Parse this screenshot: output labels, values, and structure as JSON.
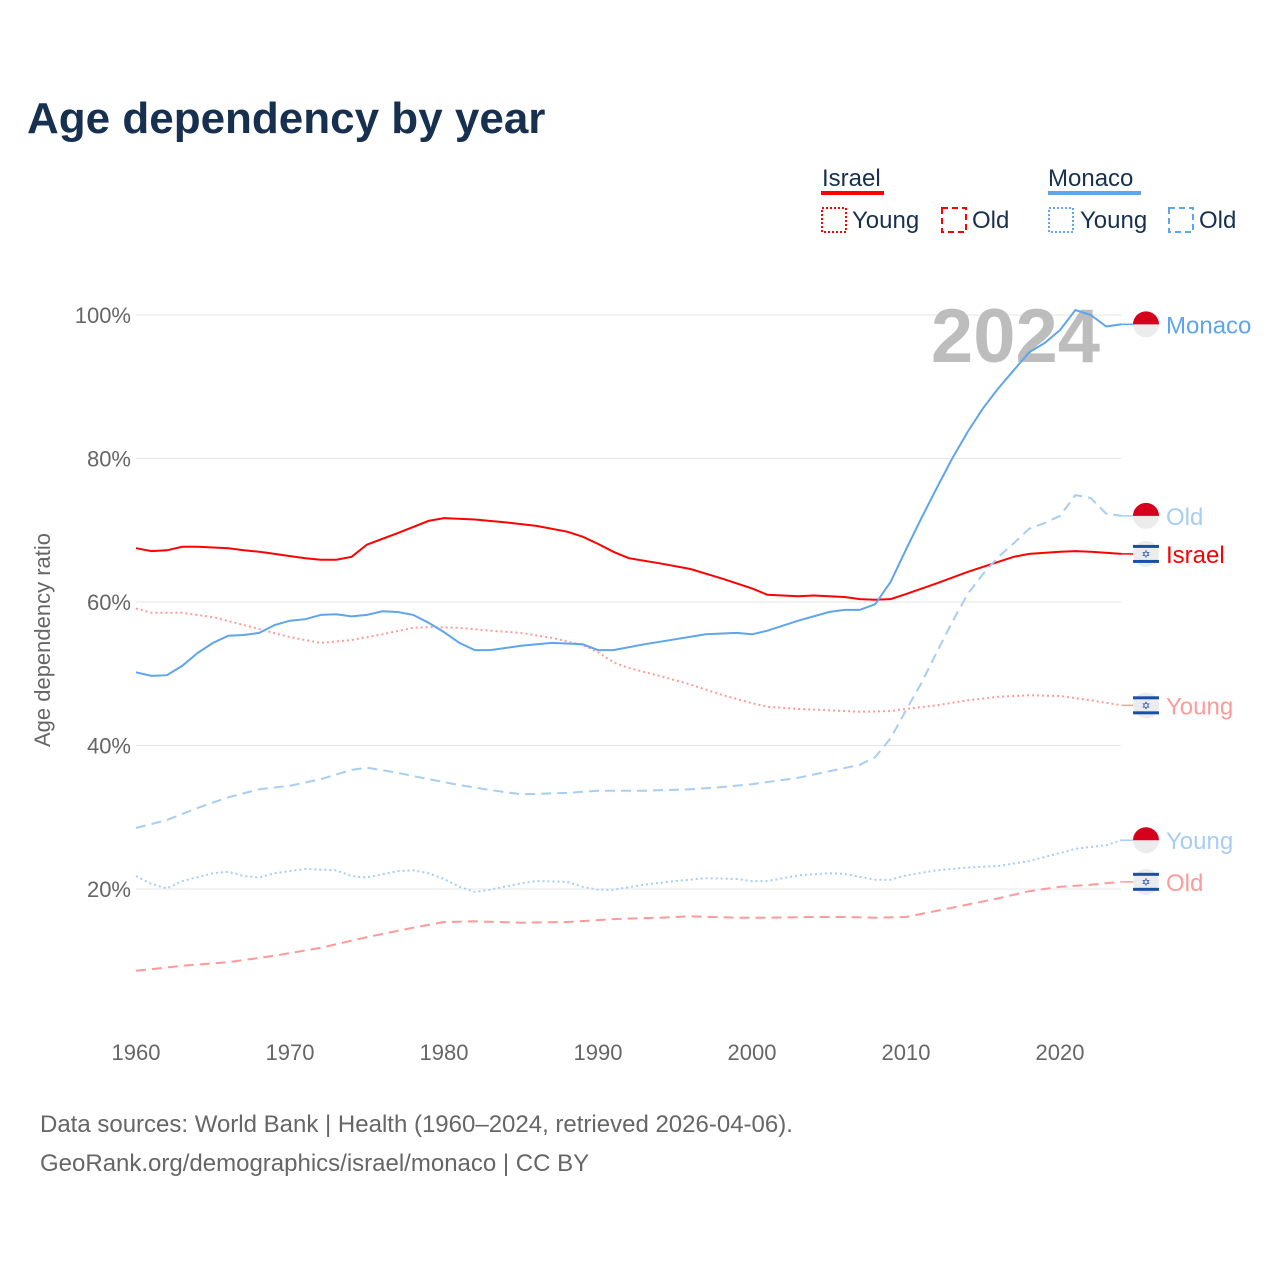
{
  "chart_data": {
    "type": "line",
    "title": "Age dependency by year",
    "ylabel": "Age dependency ratio",
    "xlabel": "",
    "xlim": [
      1960,
      2024
    ],
    "ylim": [
      0,
      100
    ],
    "x_ticks": [
      "1960",
      "1970",
      "1980",
      "1990",
      "2000",
      "2010",
      "2020"
    ],
    "y_ticks": [
      "20%",
      "40%",
      "60%",
      "80%",
      "100%"
    ],
    "y_tick_values": [
      20,
      40,
      60,
      80,
      100
    ],
    "x_tick_values": [
      1960,
      1970,
      1980,
      1990,
      2000,
      2010,
      2020
    ],
    "grid": true,
    "year_badge": "2024",
    "legend": {
      "placement": "top-right",
      "groups": [
        {
          "country": "Israel",
          "color": "#ff0000",
          "young": "Young",
          "old": "Old"
        },
        {
          "country": "Monaco",
          "color": "#5ea5ec",
          "young": "Young",
          "old": "Old"
        }
      ]
    },
    "series": [
      {
        "name": "Israel",
        "label": "Israel",
        "flag": "israel",
        "style": "solid",
        "color": "#ff0000",
        "x": [
          1960,
          1961,
          1962,
          1963,
          1964,
          1965,
          1966,
          1967,
          1968,
          1969,
          1970,
          1971,
          1972,
          1973,
          1974,
          1975,
          1977,
          1979,
          1980,
          1982,
          1984,
          1986,
          1988,
          1989,
          1990,
          1991,
          1992,
          1994,
          1996,
          1998,
          2000,
          2001,
          2003,
          2004,
          2006,
          2007,
          2008,
          2009,
          2010,
          2012,
          2014,
          2016,
          2017,
          2018,
          2020,
          2021,
          2022,
          2024
        ],
        "values": [
          67.5,
          67.1,
          67.2,
          67.7,
          67.7,
          67.6,
          67.5,
          67.2,
          67.0,
          66.7,
          66.4,
          66.1,
          65.9,
          65.9,
          66.3,
          68.0,
          69.6,
          71.3,
          71.7,
          71.5,
          71.1,
          70.6,
          69.8,
          69.1,
          68.1,
          67.0,
          66.1,
          65.4,
          64.6,
          63.3,
          61.9,
          61.0,
          60.8,
          60.9,
          60.7,
          60.4,
          60.3,
          60.4,
          61.1,
          62.6,
          64.2,
          65.6,
          66.3,
          66.7,
          67.0,
          67.1,
          67.0,
          66.7
        ]
      },
      {
        "name": "Israel Young",
        "label": "Young",
        "flag": "israel",
        "style": "dotted",
        "color": "#ff9a9a",
        "x": [
          1960,
          1961,
          1963,
          1965,
          1967,
          1970,
          1972,
          1974,
          1976,
          1978,
          1979,
          1981,
          1983,
          1985,
          1987,
          1989,
          1990,
          1991,
          1992,
          1994,
          1996,
          1998,
          2000,
          2001,
          2003,
          2005,
          2007,
          2009,
          2010,
          2012,
          2014,
          2016,
          2018,
          2020,
          2022,
          2024
        ],
        "values": [
          59.1,
          58.5,
          58.5,
          57.9,
          56.8,
          55.1,
          54.3,
          54.7,
          55.5,
          56.4,
          56.5,
          56.4,
          56.0,
          55.7,
          55.0,
          54.0,
          53.0,
          51.6,
          50.8,
          49.7,
          48.5,
          47.1,
          45.9,
          45.4,
          45.1,
          44.9,
          44.7,
          44.8,
          45.1,
          45.6,
          46.3,
          46.8,
          47.0,
          46.9,
          46.3,
          45.6
        ]
      },
      {
        "name": "Israel Old",
        "label": "Old",
        "flag": "israel",
        "style": "dashed",
        "color": "#ff9a9a",
        "x": [
          1960,
          1963,
          1966,
          1969,
          1972,
          1975,
          1978,
          1980,
          1982,
          1985,
          1988,
          1991,
          1994,
          1996,
          1999,
          2001,
          2004,
          2006,
          2008,
          2010,
          2013,
          2016,
          2018,
          2020,
          2022,
          2024
        ],
        "values": [
          8.6,
          9.3,
          9.8,
          10.7,
          11.8,
          13.3,
          14.6,
          15.4,
          15.5,
          15.3,
          15.4,
          15.8,
          16.0,
          16.2,
          16.0,
          16.0,
          16.1,
          16.1,
          16.0,
          16.1,
          17.4,
          18.7,
          19.7,
          20.3,
          20.6,
          21.0
        ]
      },
      {
        "name": "Monaco",
        "label": "Monaco",
        "flag": "monaco",
        "style": "solid",
        "color": "#5ea5ec",
        "x": [
          1960,
          1961,
          1962,
          1963,
          1964,
          1965,
          1966,
          1967,
          1968,
          1969,
          1970,
          1971,
          1972,
          1973,
          1974,
          1975,
          1976,
          1977,
          1978,
          1979,
          1980,
          1981,
          1982,
          1983,
          1985,
          1987,
          1989,
          1990,
          1991,
          1993,
          1995,
          1997,
          1999,
          2000,
          2001,
          2003,
          2004,
          2005,
          2006,
          2007,
          2008,
          2009,
          2010,
          2011,
          2012,
          2013,
          2014,
          2015,
          2016,
          2017,
          2018,
          2019,
          2020,
          2021,
          2022,
          2023,
          2024
        ],
        "values": [
          50.2,
          49.7,
          49.8,
          51.1,
          52.9,
          54.3,
          55.3,
          55.4,
          55.7,
          56.8,
          57.4,
          57.6,
          58.2,
          58.3,
          58.0,
          58.2,
          58.7,
          58.6,
          58.2,
          57.1,
          55.8,
          54.3,
          53.3,
          53.3,
          53.9,
          54.3,
          54.1,
          53.3,
          53.3,
          54.1,
          54.8,
          55.5,
          55.7,
          55.5,
          56.0,
          57.4,
          58.0,
          58.6,
          58.9,
          58.9,
          59.7,
          62.8,
          67.3,
          71.7,
          75.9,
          80.0,
          83.7,
          87.0,
          89.8,
          92.3,
          94.8,
          96.1,
          97.9,
          100.7,
          100.0,
          98.4,
          98.7
        ]
      },
      {
        "name": "Monaco Old",
        "label": "Old",
        "flag": "monaco",
        "style": "dashed",
        "color": "#a7cdf3",
        "x": [
          1960,
          1962,
          1964,
          1966,
          1968,
          1970,
          1972,
          1974,
          1975,
          1977,
          1979,
          1981,
          1983,
          1985,
          1988,
          1990,
          1993,
          1996,
          1998,
          2000,
          2003,
          2005,
          2007,
          2008,
          2009,
          2010,
          2011,
          2012,
          2013,
          2014,
          2015,
          2016,
          2017,
          2018,
          2019,
          2020,
          2021,
          2022,
          2023,
          2024
        ],
        "values": [
          28.5,
          29.6,
          31.3,
          32.8,
          33.9,
          34.4,
          35.3,
          36.6,
          36.9,
          36.2,
          35.3,
          34.5,
          33.8,
          33.2,
          33.4,
          33.7,
          33.7,
          33.9,
          34.2,
          34.6,
          35.5,
          36.4,
          37.3,
          38.4,
          41.0,
          44.9,
          48.7,
          53.0,
          57.2,
          61.1,
          63.9,
          66.3,
          68.2,
          70.2,
          71.0,
          72.0,
          74.9,
          74.5,
          72.3,
          72.0
        ]
      },
      {
        "name": "Monaco Young",
        "label": "Young",
        "flag": "monaco",
        "style": "dotted",
        "color": "#a7cdf3",
        "x": [
          1960,
          1961,
          1962,
          1963,
          1965,
          1966,
          1967,
          1968,
          1969,
          1971,
          1973,
          1974,
          1975,
          1977,
          1978,
          1979,
          1980,
          1981,
          1982,
          1983,
          1985,
          1986,
          1988,
          1989,
          1990,
          1991,
          1993,
          1995,
          1997,
          1999,
          2000,
          2001,
          2003,
          2005,
          2006,
          2007,
          2008,
          2009,
          2010,
          2012,
          2014,
          2016,
          2018,
          2020,
          2021,
          2023,
          2024
        ],
        "values": [
          21.8,
          20.7,
          20.1,
          21.1,
          22.2,
          22.4,
          21.8,
          21.6,
          22.2,
          22.8,
          22.6,
          21.8,
          21.6,
          22.5,
          22.6,
          22.2,
          21.4,
          20.3,
          19.6,
          19.9,
          20.8,
          21.1,
          21.0,
          20.3,
          19.9,
          19.9,
          20.6,
          21.1,
          21.5,
          21.4,
          21.1,
          21.1,
          21.9,
          22.2,
          22.1,
          21.7,
          21.3,
          21.3,
          21.9,
          22.6,
          23.0,
          23.2,
          23.9,
          25.0,
          25.6,
          26.1,
          26.8
        ]
      }
    ]
  },
  "footer": {
    "line1": "Data sources: World Bank | Health (1960–2024, retrieved 2026-04-06).",
    "line2": "GeoRank.org/demographics/israel/monaco | CC BY"
  }
}
